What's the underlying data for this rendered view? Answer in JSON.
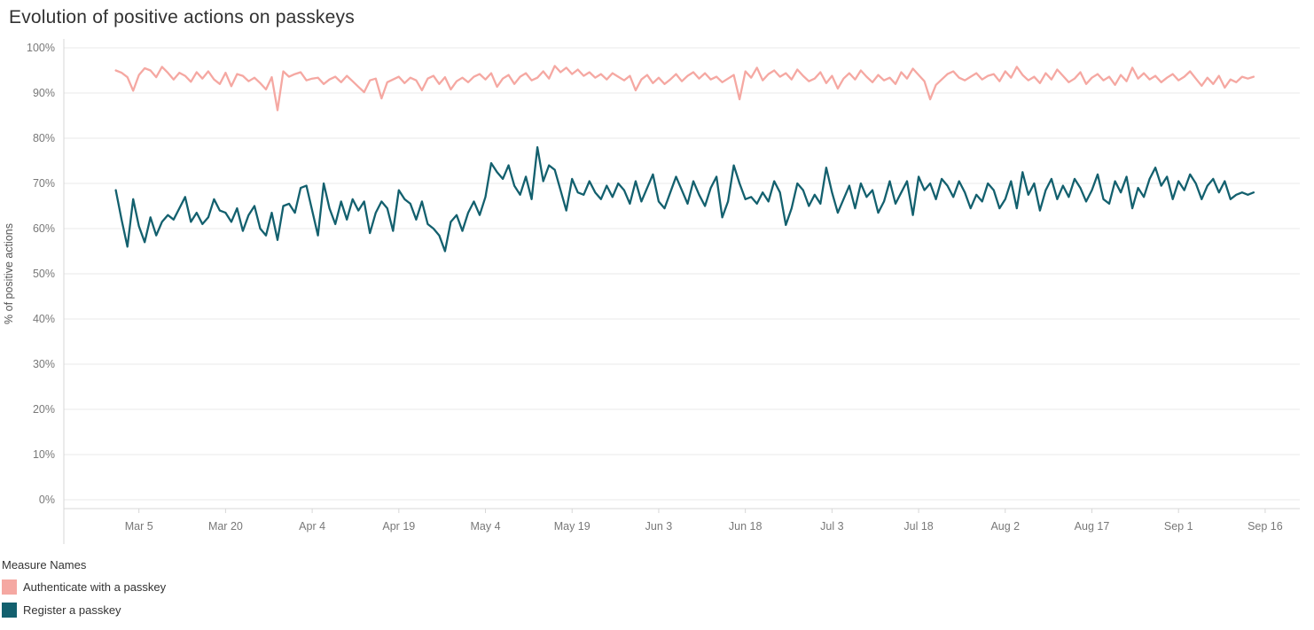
{
  "title": "Evolution of positive actions on passkeys",
  "legend": {
    "title": "Measure Names",
    "items": [
      {
        "label": "Authenticate with a passkey",
        "color": "#f5a8a2"
      },
      {
        "label": "Register a passkey",
        "color": "#13606e"
      }
    ]
  },
  "chart_data": {
    "type": "line",
    "title": "Evolution of positive actions on passkeys",
    "xlabel": "",
    "ylabel": "% of positive actions",
    "ylim": [
      0,
      100
    ],
    "grid": "horizontal",
    "legend_position": "bottom-left",
    "y_ticks": [
      "0%",
      "10%",
      "20%",
      "30%",
      "40%",
      "50%",
      "60%",
      "70%",
      "80%",
      "90%",
      "100%"
    ],
    "x_start_date": "Mar 1",
    "x_unit": "day",
    "x_index_range": [
      -9,
      205
    ],
    "x_ticks": [
      {
        "label": "Mar 5",
        "index": 4
      },
      {
        "label": "Mar 20",
        "index": 19
      },
      {
        "label": "Apr 4",
        "index": 34
      },
      {
        "label": "Apr 19",
        "index": 49
      },
      {
        "label": "May 4",
        "index": 64
      },
      {
        "label": "May 19",
        "index": 79
      },
      {
        "label": "Jun 3",
        "index": 94
      },
      {
        "label": "Jun 18",
        "index": 109
      },
      {
        "label": "Jul 3",
        "index": 124
      },
      {
        "label": "Jul 18",
        "index": 139
      },
      {
        "label": "Aug 2",
        "index": 154
      },
      {
        "label": "Aug 17",
        "index": 169
      },
      {
        "label": "Sep 1",
        "index": 184
      },
      {
        "label": "Sep 16",
        "index": 199
      }
    ],
    "series": [
      {
        "name": "Authenticate with a passkey",
        "color": "#f5a8a2",
        "values": [
          95,
          94.5,
          93.5,
          90.5,
          94,
          95.5,
          95,
          93.5,
          95.8,
          94.5,
          93,
          94.5,
          93.8,
          92.5,
          94.6,
          93.2,
          94.8,
          93,
          92,
          94.5,
          91.5,
          94.2,
          93.8,
          92.6,
          93.4,
          92.2,
          90.8,
          93.5,
          86.2,
          94.8,
          93.6,
          94.2,
          94.6,
          92.8,
          93.2,
          93.4,
          92.0,
          93.0,
          93.6,
          92.4,
          93.8,
          92.6,
          91.4,
          90.2,
          92.8,
          93.2,
          88.8,
          92.4,
          93.0,
          93.6,
          92.2,
          93.4,
          92.8,
          90.6,
          93.2,
          93.8,
          92.0,
          93.5,
          90.8,
          92.6,
          93.4,
          92.4,
          93.6,
          94.2,
          93.0,
          94.4,
          91.4,
          93.2,
          94.0,
          92.0,
          93.6,
          94.4,
          92.8,
          93.4,
          94.8,
          93.2,
          96.0,
          94.6,
          95.6,
          94.2,
          95.2,
          93.8,
          94.6,
          93.4,
          94.2,
          93.0,
          94.4,
          93.6,
          92.8,
          93.8,
          90.6,
          93.0,
          94.0,
          92.2,
          93.4,
          92.0,
          93.0,
          94.2,
          92.6,
          93.8,
          94.6,
          93.2,
          94.4,
          93.0,
          93.6,
          92.4,
          93.2,
          94.0,
          88.6,
          94.8,
          93.4,
          95.6,
          92.8,
          94.2,
          95.0,
          93.6,
          94.4,
          93.0,
          95.2,
          93.8,
          92.6,
          93.2,
          94.6,
          92.2,
          93.8,
          91.0,
          93.2,
          94.4,
          93.0,
          95.0,
          93.6,
          92.4,
          94.0,
          92.8,
          93.4,
          92.0,
          94.6,
          93.2,
          95.4,
          94.0,
          92.6,
          88.6,
          91.8,
          93.0,
          94.2,
          94.8,
          93.4,
          92.8,
          93.6,
          94.4,
          93.0,
          93.8,
          94.2,
          92.6,
          94.8,
          93.4,
          95.8,
          94.0,
          92.8,
          93.6,
          92.2,
          94.4,
          93.0,
          95.2,
          93.8,
          92.4,
          93.2,
          94.6,
          92.0,
          93.4,
          94.2,
          92.8,
          93.6,
          91.8,
          94.0,
          92.6,
          95.6,
          93.2,
          94.4,
          93.0,
          93.8,
          92.4,
          93.4,
          94.2,
          92.8,
          93.6,
          94.8,
          93.2,
          91.6,
          93.4,
          92.0,
          93.8,
          91.2,
          93.0,
          92.4,
          93.6,
          93.2,
          93.6
        ]
      },
      {
        "name": "Register a passkey",
        "color": "#13606e",
        "values": [
          68.5,
          62.0,
          56.0,
          66.5,
          60.5,
          57.0,
          62.5,
          58.5,
          61.5,
          63.0,
          62.0,
          64.5,
          67.0,
          61.5,
          63.5,
          61.0,
          62.5,
          66.5,
          64.0,
          63.5,
          61.5,
          64.5,
          59.5,
          63.0,
          65.0,
          60.0,
          58.5,
          63.5,
          57.5,
          65.0,
          65.5,
          63.5,
          69.0,
          69.5,
          64.0,
          58.5,
          70.0,
          64.5,
          61.0,
          66.0,
          62.0,
          66.5,
          64.0,
          66.0,
          59.0,
          63.5,
          66.0,
          64.5,
          59.5,
          68.5,
          66.5,
          65.5,
          62.0,
          66.0,
          61.0,
          60.0,
          58.5,
          55.0,
          61.5,
          63.0,
          59.5,
          63.5,
          66.0,
          63.0,
          67.0,
          74.5,
          72.5,
          71.0,
          74.0,
          69.5,
          67.5,
          71.5,
          66.5,
          78.0,
          70.5,
          74.0,
          73.0,
          68.5,
          64.0,
          71.0,
          68.0,
          67.5,
          70.5,
          68.0,
          66.5,
          69.5,
          67.0,
          70.0,
          68.5,
          65.5,
          70.5,
          66.0,
          69.0,
          72.0,
          66.0,
          64.5,
          68.0,
          71.5,
          68.5,
          65.5,
          70.5,
          67.5,
          65.0,
          69.0,
          71.5,
          62.5,
          66.0,
          74.0,
          70.0,
          66.5,
          67.0,
          65.5,
          68.0,
          66.0,
          70.5,
          68.0,
          60.8,
          64.5,
          70.0,
          68.5,
          65.0,
          67.5,
          65.5,
          73.5,
          68.0,
          63.5,
          66.5,
          69.5,
          64.5,
          70.0,
          67.0,
          68.5,
          63.5,
          66.0,
          70.5,
          65.5,
          68.0,
          70.5,
          63.0,
          71.5,
          68.5,
          70.0,
          66.5,
          71.0,
          69.5,
          67.0,
          70.5,
          68.0,
          64.5,
          67.5,
          66.0,
          70.0,
          68.5,
          64.5,
          66.5,
          70.5,
          64.5,
          72.5,
          67.5,
          70.0,
          64.0,
          68.5,
          71.0,
          66.5,
          69.5,
          67.0,
          71.0,
          69.0,
          66.0,
          68.5,
          72.0,
          66.5,
          65.5,
          70.5,
          68.0,
          71.5,
          64.5,
          69.0,
          67.0,
          71.0,
          73.5,
          69.5,
          71.5,
          66.5,
          70.5,
          68.5,
          72.0,
          70.0,
          66.5,
          69.5,
          71.0,
          68.0,
          70.5,
          66.5,
          67.5,
          68.0,
          67.5,
          68.0
        ]
      }
    ]
  }
}
